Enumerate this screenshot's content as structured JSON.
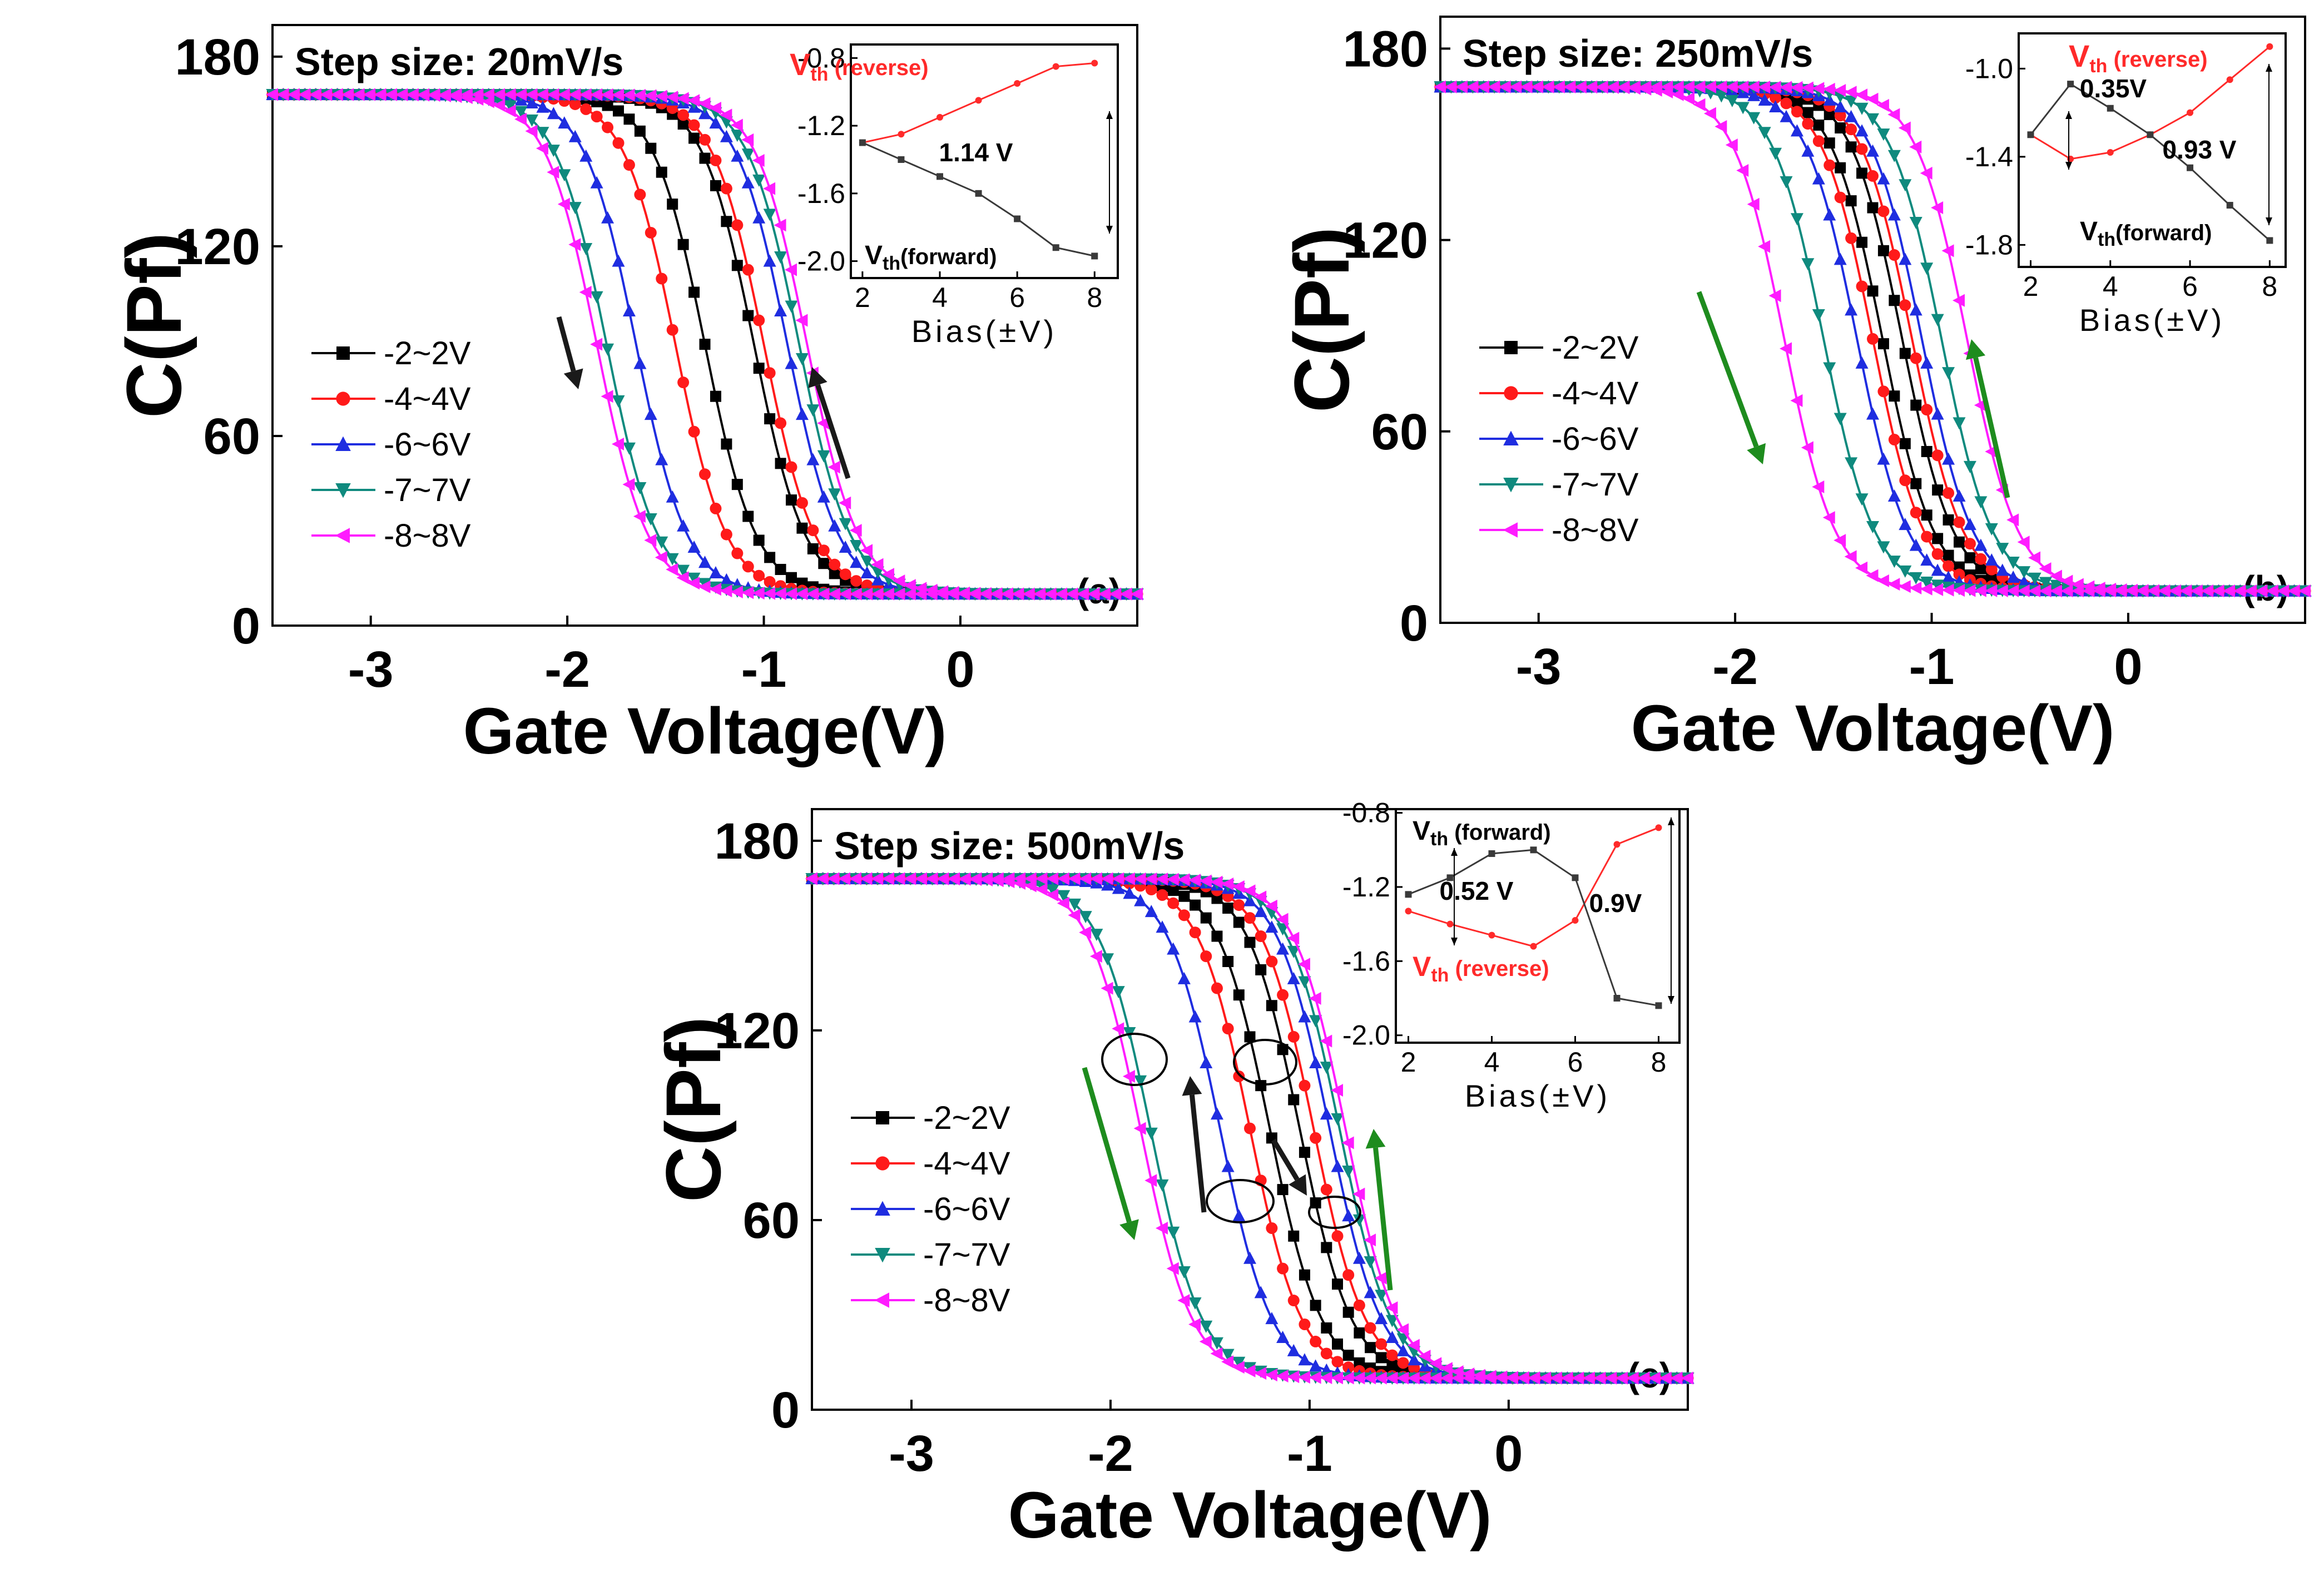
{
  "colors": {
    "s1": "#000000",
    "s2": "#ff1a1a",
    "s3": "#1f2de0",
    "s4": "#0f8a7e",
    "s5": "#ff1cff",
    "forward": "#3a3a3a",
    "reverse": "#ff2a2a",
    "arrow_black": "#1a1a1a",
    "arrow_green": "#1e8c1e"
  },
  "chart_data": [
    {
      "id": "a",
      "type": "line",
      "panel_label": "(a)",
      "title": "Step size: 20mV/s",
      "xlabel": "Gate Voltage(V)",
      "ylabel": "C(Pf)",
      "xlim": [
        -3.5,
        0.9
      ],
      "ylim": [
        0,
        190
      ],
      "xticks": [
        -3,
        -2,
        -1,
        0
      ],
      "xtick_labels": [
        "-3",
        "-2",
        "-1",
        "0"
      ],
      "yticks": [
        0,
        60,
        120,
        180
      ],
      "ytick_labels": [
        "0",
        "60",
        "120",
        "180"
      ],
      "legend": [
        "-2~2V",
        "-4~4V",
        "-6~6V",
        "-7~7V",
        "-8~8V"
      ],
      "series": [
        {
          "name": "-2~2V",
          "marker": "square",
          "vth_forward": -1.3,
          "vth_reverse": -1.05
        },
        {
          "name": "-4~4V",
          "marker": "circle",
          "vth_forward": -1.45,
          "vth_reverse": -1.0
        },
        {
          "name": "-6~6V",
          "marker": "triangle-up",
          "vth_forward": -1.65,
          "vth_reverse": -0.88
        },
        {
          "name": "-7~7V",
          "marker": "triangle-down",
          "vth_forward": -1.8,
          "vth_reverse": -0.82
        },
        {
          "name": "-8~8V",
          "marker": "triangle-left",
          "vth_forward": -1.85,
          "vth_reverse": -0.78
        }
      ],
      "inset": {
        "xlabel": "Bias(±V)",
        "xlim": [
          1.7,
          8.6
        ],
        "ylim": [
          -2.1,
          -0.72
        ],
        "xticks": [
          2,
          4,
          6,
          8
        ],
        "xtick_labels": [
          "2",
          "4",
          "6",
          "8"
        ],
        "yticks": [
          -0.8,
          -1.2,
          -1.6,
          -2.0
        ],
        "ytick_labels": [
          "-0.8",
          "-1.2",
          "-1.6",
          "-2.0"
        ],
        "reverse_label_main": "V",
        "reverse_label_sub": "th",
        "reverse_label_rest": " (reverse)",
        "forward_label_main": "V",
        "forward_label_sub": "th",
        "forward_label_rest": "(forward)",
        "diff_label": "1.14 V",
        "reverse": {
          "x": [
            2,
            3,
            4,
            5,
            6,
            7,
            8
          ],
          "y": [
            -1.3,
            -1.25,
            -1.15,
            -1.05,
            -0.95,
            -0.85,
            -0.83
          ]
        },
        "forward": {
          "x": [
            2,
            3,
            4,
            5,
            6,
            7,
            8
          ],
          "y": [
            -1.3,
            -1.4,
            -1.5,
            -1.6,
            -1.75,
            -1.92,
            -1.97
          ]
        }
      }
    },
    {
      "id": "b",
      "type": "line",
      "panel_label": "(b)",
      "title": "Step size: 250mV/s",
      "xlabel": "Gate Voltage(V)",
      "ylabel": "C(Pf)",
      "xlim": [
        -3.5,
        0.9
      ],
      "ylim": [
        0,
        190
      ],
      "xticks": [
        -3,
        -2,
        -1,
        0
      ],
      "xtick_labels": [
        "-3",
        "-2",
        "-1",
        "0"
      ],
      "yticks": [
        0,
        60,
        120,
        180
      ],
      "ytick_labels": [
        "0",
        "60",
        "120",
        "180"
      ],
      "legend": [
        "-2~2V",
        "-4~4V",
        "-6~6V",
        "-7~7V",
        "-8~8V"
      ],
      "series": [
        {
          "name": "-2~2V",
          "marker": "square",
          "vth_forward": -1.25,
          "vth_reverse": -1.15
        },
        {
          "name": "-4~4V",
          "marker": "circle",
          "vth_forward": -1.3,
          "vth_reverse": -1.1
        },
        {
          "name": "-6~6V",
          "marker": "triangle-up",
          "vth_forward": -1.38,
          "vth_reverse": -1.05
        },
        {
          "name": "-7~7V",
          "marker": "triangle-down",
          "vth_forward": -1.55,
          "vth_reverse": -0.95
        },
        {
          "name": "-8~8V",
          "marker": "triangle-left",
          "vth_forward": -1.75,
          "vth_reverse": -0.82
        }
      ],
      "inset": {
        "xlabel": "Bias(±V)",
        "xlim": [
          1.7,
          8.4
        ],
        "ylim": [
          -1.9,
          -0.84
        ],
        "xticks": [
          2,
          4,
          6,
          8
        ],
        "xtick_labels": [
          "2",
          "4",
          "6",
          "8"
        ],
        "yticks": [
          -1.0,
          -1.4,
          -1.8
        ],
        "ytick_labels": [
          "-1.0",
          "-1.4",
          "-1.8"
        ],
        "reverse_label_main": "V",
        "reverse_label_sub": "th",
        "reverse_label_rest": " (reverse)",
        "forward_label_main": "V",
        "forward_label_sub": "th",
        "forward_label_rest": "(forward)",
        "diff_label": "0.93 V",
        "diff_label_2": "0.35V",
        "reverse": {
          "x": [
            2,
            3,
            4,
            5,
            6,
            7,
            8
          ],
          "y": [
            -1.3,
            -1.41,
            -1.38,
            -1.3,
            -1.2,
            -1.05,
            -0.9
          ]
        },
        "forward": {
          "x": [
            2,
            3,
            4,
            5,
            6,
            7,
            8
          ],
          "y": [
            -1.3,
            -1.07,
            -1.18,
            -1.3,
            -1.45,
            -1.62,
            -1.78
          ]
        }
      }
    },
    {
      "id": "c",
      "type": "line",
      "panel_label": "(c)",
      "title": "Step size: 500mV/s",
      "xlabel": "Gate Voltage(V)",
      "ylabel": "C(Pf)",
      "xlim": [
        -3.5,
        0.9
      ],
      "ylim": [
        0,
        190
      ],
      "xticks": [
        -3,
        -2,
        -1,
        0
      ],
      "xtick_labels": [
        "-3",
        "-2",
        "-1",
        "0"
      ],
      "yticks": [
        0,
        60,
        120,
        180
      ],
      "ytick_labels": [
        "0",
        "60",
        "120",
        "180"
      ],
      "legend": [
        "-2~2V",
        "-4~4V",
        "-6~6V",
        "-7~7V",
        "-8~8V"
      ],
      "series": [
        {
          "name": "-2~2V",
          "marker": "square",
          "vth_forward": -1.2,
          "vth_reverse": -1.05
        },
        {
          "name": "-4~4V",
          "marker": "circle",
          "vth_forward": -1.3,
          "vth_reverse": -0.98
        },
        {
          "name": "-6~6V",
          "marker": "triangle-up",
          "vth_forward": -1.45,
          "vth_reverse": -0.9
        },
        {
          "name": "-7~7V",
          "marker": "triangle-down",
          "vth_forward": -1.8,
          "vth_reverse": -0.85
        },
        {
          "name": "-8~8V",
          "marker": "triangle-left",
          "vth_forward": -1.85,
          "vth_reverse": -0.82
        }
      ],
      "inset": {
        "xlabel": "Bias(±V)",
        "xlim": [
          1.7,
          8.5
        ],
        "ylim": [
          -2.04,
          -0.78
        ],
        "xticks": [
          2,
          4,
          6,
          8
        ],
        "xtick_labels": [
          "2",
          "4",
          "6",
          "8"
        ],
        "yticks": [
          -0.8,
          -1.2,
          -1.6,
          -2.0
        ],
        "ytick_labels": [
          "-0.8",
          "-1.2",
          "-1.6",
          "-2.0"
        ],
        "reverse_label_main": "V",
        "reverse_label_sub": "th",
        "reverse_label_rest": " (reverse)",
        "forward_label_main": "V",
        "forward_label_sub": "th",
        "forward_label_rest": " (forward)",
        "diff_label": "0.52 V",
        "diff_label_2": "0.9V",
        "reverse": {
          "x": [
            2,
            3,
            4,
            5,
            6,
            7,
            8
          ],
          "y": [
            -1.33,
            -1.4,
            -1.46,
            -1.52,
            -1.38,
            -0.97,
            -0.88
          ]
        },
        "forward": {
          "x": [
            2,
            3,
            4,
            5,
            6,
            7,
            8
          ],
          "y": [
            -1.24,
            -1.15,
            -1.02,
            -1.0,
            -1.15,
            -1.8,
            -1.84
          ]
        }
      }
    }
  ]
}
